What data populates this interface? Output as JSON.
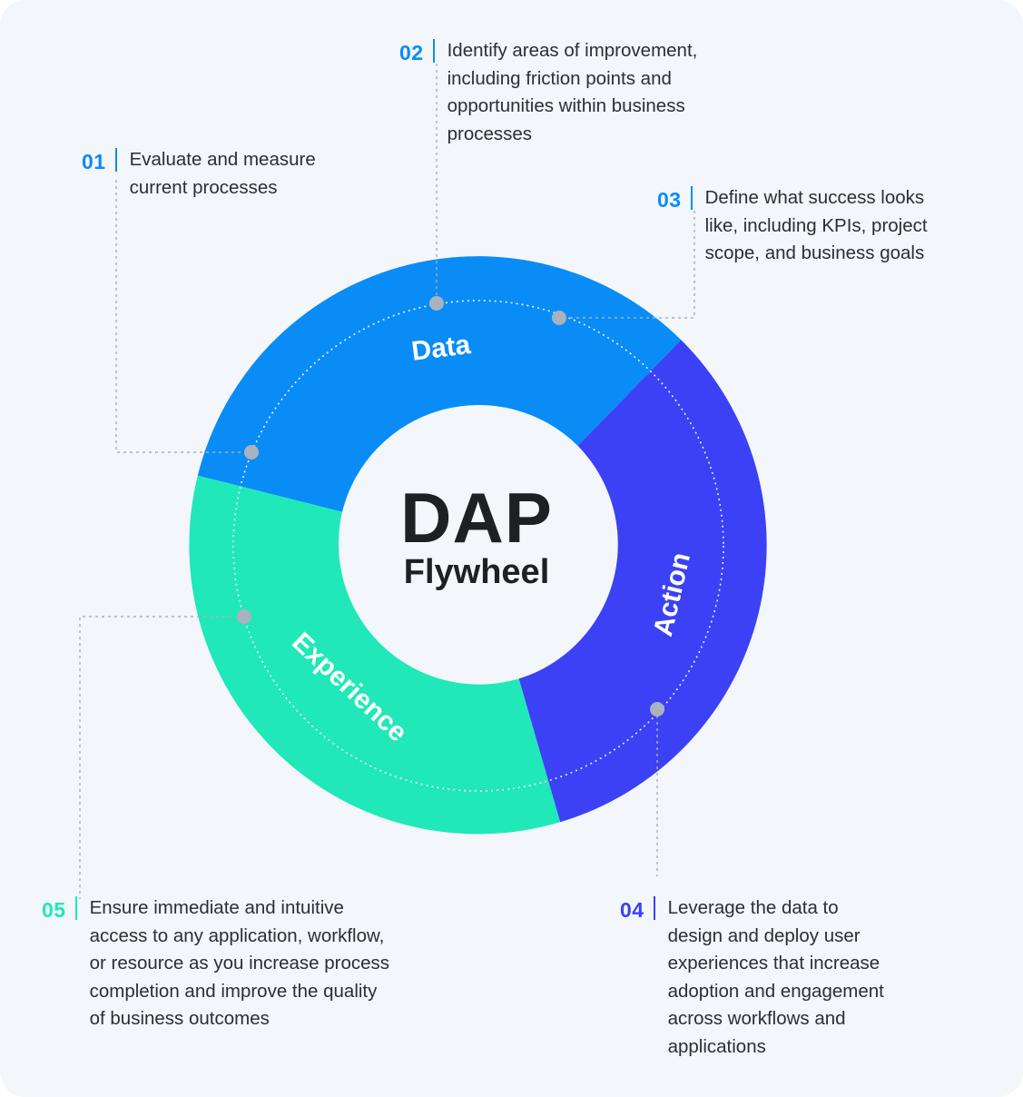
{
  "center": {
    "title": "DAP",
    "subtitle": "Flywheel"
  },
  "segments": [
    {
      "label": "Data",
      "color": "#0a8cf7"
    },
    {
      "label": "Action",
      "color": "#3c41f5"
    },
    {
      "label": "Experience",
      "color": "#20e8b8"
    }
  ],
  "steps": [
    {
      "num": "01",
      "color": "#0a8cf7",
      "lines": [
        "Evaluate and measure",
        "current processes"
      ]
    },
    {
      "num": "02",
      "color": "#0a8cf7",
      "lines": [
        "Identify areas of improvement,",
        "including friction points and",
        "opportunities within business",
        "processes"
      ]
    },
    {
      "num": "03",
      "color": "#0a8cf7",
      "lines": [
        "Define what success looks",
        "like, including KPIs, project",
        "scope, and business  goals"
      ]
    },
    {
      "num": "04",
      "color": "#3c41f5",
      "lines": [
        "Leverage the data to",
        "design and deploy user",
        "experiences that increase",
        "adoption and engagement",
        "across workflows and",
        "applications"
      ]
    },
    {
      "num": "05",
      "color": "#20e8b8",
      "lines": [
        "Ensure immediate and intuitive",
        "access to any application, workflow,",
        "or resource as you increase process",
        "completion and improve the quality",
        "of business outcomes"
      ]
    }
  ],
  "colors": {
    "background": "#f3f6fa",
    "connector": "#a7b0bb",
    "dot": "#aab2bd",
    "text": "#2a2f36"
  }
}
